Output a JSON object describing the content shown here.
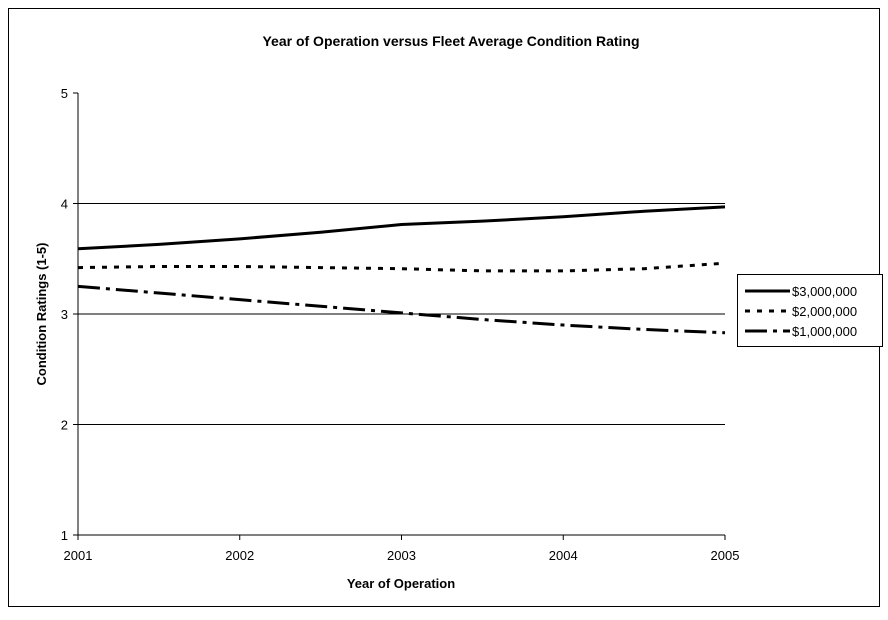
{
  "chart_data": {
    "type": "line",
    "title": "Year of Operation versus Fleet Average Condition Rating",
    "x_label": "Year of Operation",
    "y_label": "Condition Ratings (1-5)",
    "x": [
      2001,
      2001.5,
      2002,
      2002.5,
      2003,
      2003.5,
      2004,
      2004.5,
      2005
    ],
    "xlim": [
      2001,
      2005
    ],
    "xticks": [
      2001,
      2002,
      2003,
      2004,
      2005
    ],
    "ylim": [
      1,
      5
    ],
    "yticks": [
      1,
      2,
      3,
      4,
      5
    ],
    "grid": true,
    "legend": "right",
    "series": [
      {
        "name": "$3,000,000",
        "color": "#000000",
        "dash": "solid",
        "values": [
          3.59,
          3.63,
          3.68,
          3.74,
          3.81,
          3.84,
          3.88,
          3.93,
          3.97
        ]
      },
      {
        "name": "$2,000,000",
        "color": "#000000",
        "dash": "dotted",
        "values": [
          3.42,
          3.43,
          3.43,
          3.42,
          3.41,
          3.39,
          3.39,
          3.41,
          3.46
        ]
      },
      {
        "name": "$1,000,000",
        "color": "#000000",
        "dash": "dash-dot",
        "values": [
          3.25,
          3.19,
          3.13,
          3.07,
          3.01,
          2.95,
          2.9,
          2.86,
          2.83
        ]
      }
    ]
  }
}
